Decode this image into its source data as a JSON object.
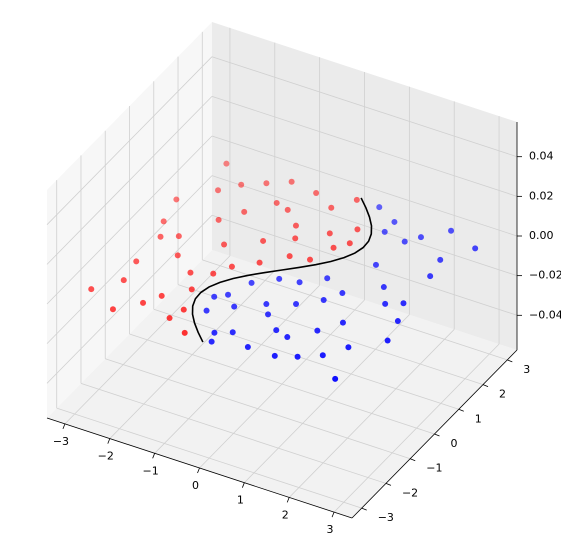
{
  "chart_data": {
    "type": "scatter3d",
    "xlim": [
      -3.4,
      3.4
    ],
    "ylim": [
      -3.4,
      3.4
    ],
    "zlim": [
      -0.0575,
      0.0575
    ],
    "xticks": [
      {
        "value": -3,
        "label": "−3"
      },
      {
        "value": -2,
        "label": "−2"
      },
      {
        "value": -1,
        "label": "−1"
      },
      0,
      1,
      2,
      3
    ],
    "yticks": [
      {
        "value": -3,
        "label": "−3"
      },
      {
        "value": -2,
        "label": "−2"
      },
      {
        "value": -1,
        "label": "−1"
      },
      0,
      1,
      2,
      3
    ],
    "zticks": [
      {
        "value": -0.04,
        "label": "−0.04"
      },
      {
        "value": -0.02,
        "label": "−0.02"
      },
      {
        "value": 0,
        "label": "0.00"
      },
      {
        "value": 0.02,
        "label": "0.02"
      },
      {
        "value": 0.04,
        "label": "0.04"
      }
    ],
    "grid": true,
    "series": [
      {
        "mode": "markers",
        "color": "#ff0000",
        "x": [
          -2.9,
          -2.6,
          -2.8,
          -2.4,
          -2.7,
          -2.2,
          -2.0,
          -1.9,
          -2.1,
          -1.6,
          -1.5,
          -1.4,
          -1.6,
          -1.3,
          -1.1,
          -1.2,
          -0.9,
          -0.8,
          -0.9,
          -0.6,
          -0.5,
          -0.3,
          -0.2,
          0.2,
          0.5,
          0.6,
          0.3,
          -1.1,
          -2.5,
          -2.95,
          -1.8,
          -0.7,
          -2.3,
          -1.2,
          -0.1,
          0.7,
          -1.0,
          -2.6,
          -1.7,
          -0.5,
          0.1
        ],
        "y": [
          -2.5,
          -1.2,
          0.3,
          1.8,
          2.7,
          -2.9,
          -0.6,
          0.9,
          2.2,
          -2.0,
          -1.0,
          0.2,
          1.4,
          2.8,
          -2.6,
          -1.5,
          -0.4,
          0.7,
          1.9,
          -2.9,
          0.0,
          1.1,
          2.4,
          1.6,
          1.2,
          2.0,
          0.6,
          -0.8,
          -1.9,
          1.1,
          -2.4,
          2.7,
          0.0,
          2.0,
          0.5,
          1.5,
          -2.2,
          -0.2,
          2.5,
          1.5,
          2.9
        ],
        "z": [
          0,
          0,
          0,
          0,
          0,
          0,
          0,
          0,
          0,
          0,
          0,
          0,
          0,
          0,
          0,
          0,
          0,
          0,
          0,
          0,
          0,
          0,
          0,
          0,
          0,
          0,
          0,
          0,
          0,
          0,
          0,
          0,
          0,
          0,
          0,
          0,
          0,
          0,
          0,
          0,
          0
        ]
      },
      {
        "mode": "markers",
        "color": "#0000ff",
        "x": [
          2.9,
          2.6,
          2.8,
          2.4,
          2.7,
          2.2,
          2.0,
          1.9,
          2.1,
          1.6,
          1.5,
          1.4,
          1.6,
          1.3,
          1.1,
          1.2,
          0.9,
          0.8,
          0.9,
          0.6,
          0.5,
          0.3,
          0.2,
          -0.2,
          -0.5,
          -0.6,
          -0.3,
          0.0,
          2.5,
          2.95,
          1.8,
          0.7,
          2.3,
          1.2,
          0.1,
          -0.7,
          1.1,
          2.6,
          1.7,
          0.5,
          -0.1
        ],
        "y": [
          2.6,
          1.3,
          -0.4,
          -1.7,
          -2.8,
          2.9,
          0.5,
          -1.0,
          -2.2,
          2.1,
          1.1,
          -0.1,
          -1.5,
          -2.7,
          2.6,
          -0.5,
          0.2,
          -0.9,
          -1.9,
          2.9,
          -0.2,
          -1.2,
          -2.4,
          -1.6,
          -1.3,
          -2.0,
          -0.7,
          -2.9,
          1.9,
          -1.1,
          2.4,
          -2.7,
          0.0,
          -2.0,
          -0.3,
          -1.5,
          2.2,
          0.2,
          -2.5,
          -1.5,
          -2.6
        ],
        "z": [
          0,
          0,
          0,
          0,
          0,
          0,
          0,
          0,
          0,
          0,
          0,
          0,
          0,
          0,
          0,
          0,
          0,
          0,
          0,
          0,
          0,
          0,
          0,
          0,
          0,
          0,
          0,
          0,
          0,
          0,
          0,
          0,
          0,
          0,
          0,
          0,
          0,
          0,
          0,
          0,
          0
        ]
      },
      {
        "mode": "line",
        "color": "#000000",
        "x": [
          -0.141,
          -0.382,
          -0.598,
          -0.778,
          -0.909,
          -0.984,
          -0.997,
          -0.949,
          -0.841,
          -0.682,
          -0.479,
          -0.247,
          0,
          0.247,
          0.479,
          0.682,
          0.841,
          0.949,
          0.997,
          0.984,
          0.909,
          0.778,
          0.598,
          0.382,
          0.141
        ],
        "y": [
          -3,
          -2.75,
          -2.5,
          -2.25,
          -2,
          -1.75,
          -1.5,
          -1.25,
          -1,
          -0.75,
          -0.5,
          -0.25,
          0,
          0.25,
          0.5,
          0.75,
          1,
          1.25,
          1.5,
          1.75,
          2,
          2.25,
          2.5,
          2.75,
          3
        ],
        "z": [
          0,
          0,
          0,
          0,
          0,
          0,
          0,
          0,
          0,
          0,
          0,
          0,
          0,
          0,
          0,
          0,
          0,
          0,
          0,
          0,
          0,
          0,
          0,
          0,
          0
        ]
      }
    ]
  }
}
